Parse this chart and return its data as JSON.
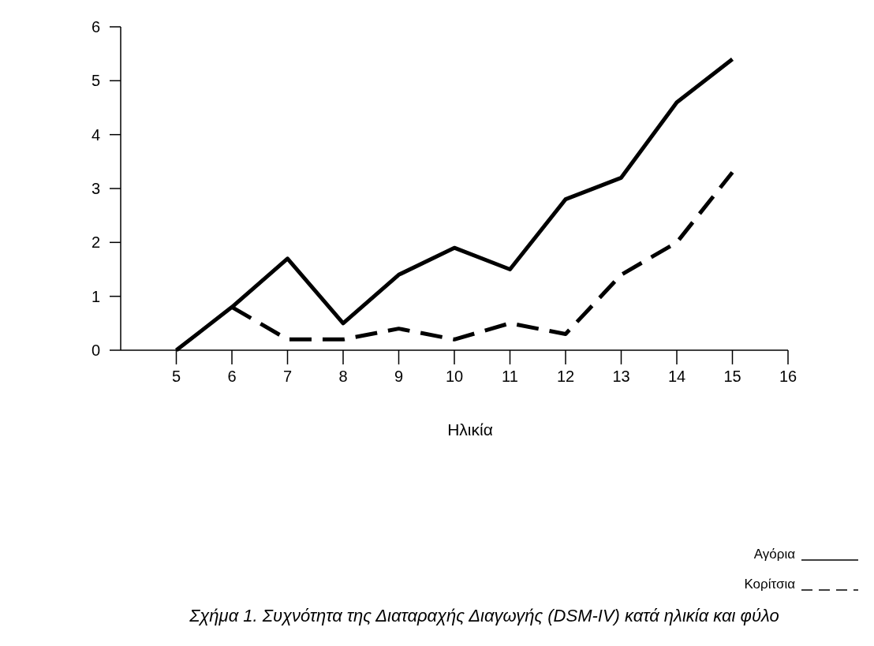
{
  "chart_data": {
    "type": "line",
    "xlabel": "Ηλικία",
    "x": [
      5,
      6,
      7,
      8,
      9,
      10,
      11,
      12,
      13,
      14,
      15
    ],
    "xlim": [
      4,
      16
    ],
    "xticks": [
      5,
      6,
      7,
      8,
      9,
      10,
      11,
      12,
      13,
      14,
      15,
      16
    ],
    "ylim": [
      0,
      6
    ],
    "yticks": [
      0,
      1,
      2,
      3,
      4,
      5,
      6
    ],
    "legend": "bottom right",
    "series": [
      {
        "name": "Αγόρια",
        "color": "#000000",
        "line_style": "solid",
        "values": [
          0,
          0.8,
          1.7,
          0.5,
          1.4,
          1.9,
          1.5,
          2.8,
          3.2,
          4.6,
          5.4
        ]
      },
      {
        "name": "Κορίτσια",
        "color": "#000000",
        "line_style": "dashed",
        "x": [
          6,
          7,
          8,
          9,
          10,
          11,
          12,
          13,
          14,
          15
        ],
        "values": [
          0.8,
          0.2,
          0.2,
          0.4,
          0.2,
          0.5,
          0.3,
          1.4,
          2.0,
          3.3
        ]
      }
    ],
    "annotations": [
      "Σχήμα 1. Συχνότητα της Διαταραχής Διαγωγής (DSM-IV) κατά ηλικία και φύλο"
    ]
  }
}
